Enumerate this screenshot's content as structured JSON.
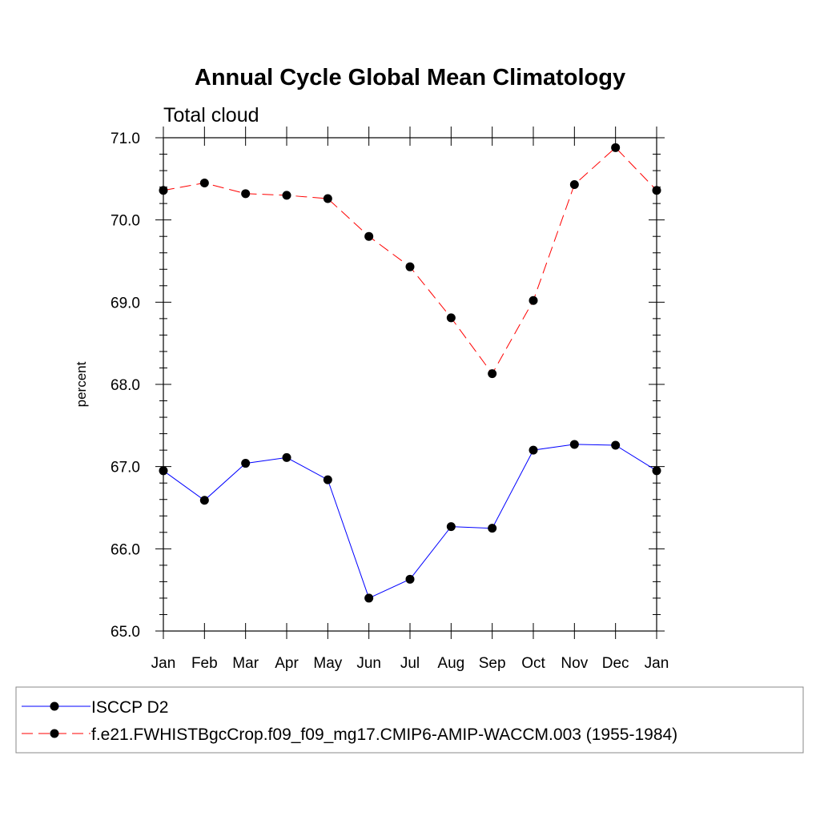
{
  "chart_data": {
    "type": "line",
    "title": "Annual Cycle Global Mean Climatology",
    "subtitle": "Total cloud",
    "xlabel": "",
    "ylabel": "percent",
    "categories": [
      "Jan",
      "Feb",
      "Mar",
      "Apr",
      "May",
      "Jun",
      "Jul",
      "Aug",
      "Sep",
      "Oct",
      "Nov",
      "Dec",
      "Jan"
    ],
    "ylim": [
      65.0,
      71.0
    ],
    "yticks": [
      "65.0",
      "66.0",
      "67.0",
      "68.0",
      "69.0",
      "70.0",
      "71.0"
    ],
    "grid": false,
    "legend_position": "bottom",
    "series": [
      {
        "name": "ISCCP D2",
        "color": "#0000ff",
        "dash": "solid",
        "values": [
          66.95,
          66.59,
          67.04,
          67.11,
          66.84,
          65.4,
          65.63,
          66.27,
          66.25,
          67.2,
          67.27,
          67.26,
          66.95
        ]
      },
      {
        "name": "f.e21.FWHISTBgcCrop.f09_f09_mg17.CMIP6-AMIP-WACCM.003 (1955-1984)",
        "color": "#ff0000",
        "dash": "dashed",
        "values": [
          70.36,
          70.45,
          70.32,
          70.3,
          70.26,
          69.8,
          69.43,
          68.81,
          68.13,
          69.02,
          70.43,
          70.88,
          70.36
        ]
      }
    ]
  }
}
